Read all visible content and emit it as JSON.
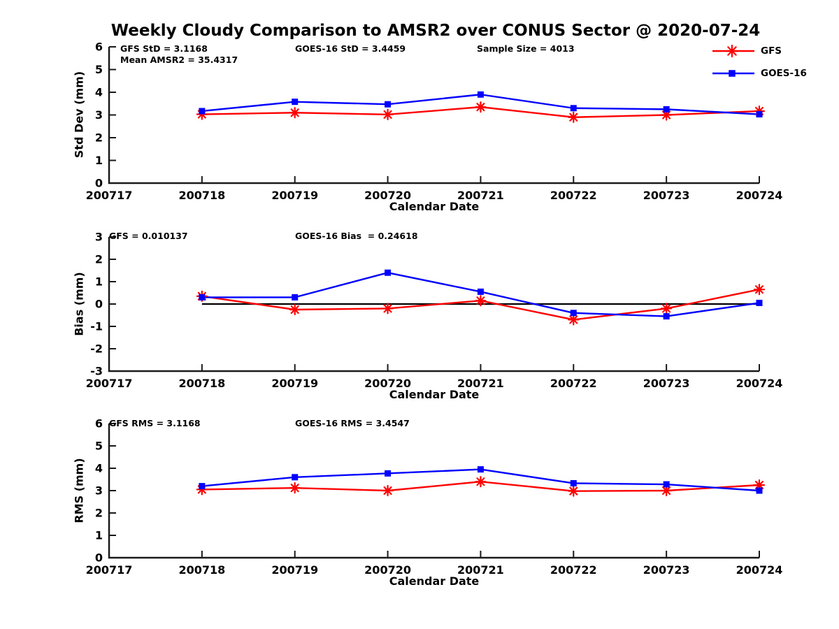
{
  "title": "Weekly Cloudy Comparison to AMSR2 over CONUS Sector @ 2020-07-24",
  "colors": {
    "gfs": "#ff0000",
    "goes16": "#0000ff",
    "axis": "#1a1a1a",
    "zero_line": "#000000"
  },
  "legend": [
    {
      "label": "GFS",
      "color": "#ff0000",
      "marker": "asterisk"
    },
    {
      "label": "GOES-16",
      "color": "#0000ff",
      "marker": "square"
    }
  ],
  "chart_data": [
    {
      "id": "std-dev",
      "type": "line",
      "title": "",
      "xlabel": "Calendar Date",
      "ylabel": "Std Dev (mm)",
      "ylim": [
        0,
        6
      ],
      "yticks": [
        0,
        1,
        2,
        3,
        4,
        5,
        6
      ],
      "grid": false,
      "categories": [
        "200717",
        "200718",
        "200719",
        "200720",
        "200721",
        "200722",
        "200723",
        "200724"
      ],
      "annotations": {
        "gfs_std": "GFS StD = 3.1168",
        "mean_amsr2": "Mean AMSR2 = 35.4317",
        "goes_std": "GOES-16 StD = 3.4459",
        "sample_size": "Sample Size = 4013"
      },
      "series": [
        {
          "name": "GFS",
          "color": "#ff0000",
          "marker": "asterisk",
          "values": [
            null,
            3.03,
            3.1,
            3.02,
            3.35,
            2.9,
            3.0,
            3.17
          ]
        },
        {
          "name": "GOES-16",
          "color": "#0000ff",
          "marker": "square",
          "values": [
            null,
            3.17,
            3.58,
            3.47,
            3.9,
            3.3,
            3.25,
            3.03
          ]
        }
      ]
    },
    {
      "id": "bias",
      "type": "line",
      "title": "",
      "xlabel": "Calendar Date",
      "ylabel": "Bias (mm)",
      "ylim": [
        -3,
        3
      ],
      "yticks": [
        -3,
        -2,
        -1,
        0,
        1,
        2,
        3
      ],
      "grid": false,
      "zero_line": true,
      "categories": [
        "200717",
        "200718",
        "200719",
        "200720",
        "200721",
        "200722",
        "200723",
        "200724"
      ],
      "annotations": {
        "gfs_bias": "GFS = 0.010137",
        "goes_bias": "GOES-16 Bias  = 0.24618"
      },
      "series": [
        {
          "name": "GFS",
          "color": "#ff0000",
          "marker": "asterisk",
          "values": [
            null,
            0.35,
            -0.25,
            -0.2,
            0.15,
            -0.7,
            -0.2,
            0.65
          ]
        },
        {
          "name": "GOES-16",
          "color": "#0000ff",
          "marker": "square",
          "values": [
            null,
            0.3,
            0.3,
            1.4,
            0.55,
            -0.4,
            -0.55,
            0.05
          ]
        }
      ]
    },
    {
      "id": "rms",
      "type": "line",
      "title": "",
      "xlabel": "Calendar Date",
      "ylabel": "RMS (mm)",
      "ylim": [
        0,
        6
      ],
      "yticks": [
        0,
        1,
        2,
        3,
        4,
        5,
        6
      ],
      "grid": false,
      "annotations": {
        "gfs_rms": "GFS RMS = 3.1168",
        "goes_rms": "GOES-16 RMS = 3.4547"
      },
      "categories": [
        "200717",
        "200718",
        "200719",
        "200720",
        "200721",
        "200722",
        "200723",
        "200724"
      ],
      "series": [
        {
          "name": "GFS",
          "color": "#ff0000",
          "marker": "asterisk",
          "values": [
            null,
            3.05,
            3.12,
            3.0,
            3.4,
            2.98,
            3.0,
            3.25
          ]
        },
        {
          "name": "GOES-16",
          "color": "#0000ff",
          "marker": "square",
          "values": [
            null,
            3.2,
            3.6,
            3.77,
            3.95,
            3.33,
            3.28,
            3.0
          ]
        }
      ]
    }
  ]
}
